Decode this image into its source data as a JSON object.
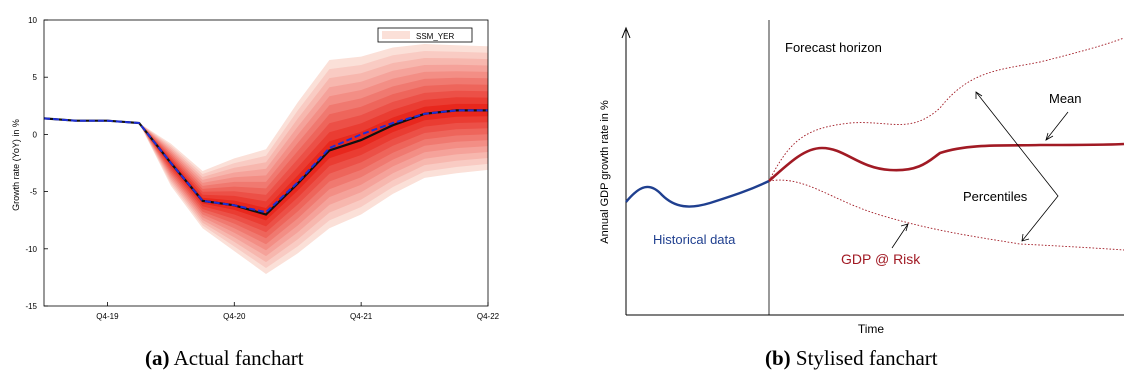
{
  "chart_data": [
    {
      "type": "area",
      "subtype": "fanchart",
      "ylabel": "Growth rate (YoY) in  %",
      "xlabel": "",
      "ylim": [
        -15,
        10
      ],
      "yticks": [
        10,
        5,
        0,
        -5,
        -10,
        -15
      ],
      "xticks": [
        "Q4-19",
        "Q4-20",
        "Q4-21",
        "Q4-22"
      ],
      "legend": {
        "entries": [
          "SSM_YER"
        ],
        "placement": "top-right"
      },
      "x": [
        "Q2-19",
        "Q3-19",
        "Q4-19",
        "Q1-20",
        "Q2-20",
        "Q3-20",
        "Q4-20",
        "Q1-21",
        "Q2-21",
        "Q3-21",
        "Q4-21",
        "Q1-22",
        "Q2-22",
        "Q3-22",
        "Q4-22"
      ],
      "series": [
        {
          "name": "SSM_YER",
          "values": [
            1.4,
            1.2,
            1.2,
            1.0,
            -2.5,
            -5.8,
            -6.2,
            -6.8,
            -4.2,
            -1.2,
            0.0,
            1.0,
            1.8,
            2.1,
            2.1
          ]
        }
      ],
      "fan": {
        "median": [
          1.4,
          1.2,
          1.2,
          1.0,
          -2.5,
          -5.8,
          -6.2,
          -7.0,
          -4.3,
          -1.4,
          -0.5,
          0.8,
          1.8,
          2.1,
          2.1
        ],
        "upper": [
          1.4,
          1.2,
          1.2,
          1.0,
          -0.8,
          -3.2,
          -2.1,
          -1.3,
          2.8,
          6.5,
          6.8,
          7.6,
          7.9,
          7.8,
          7.7
        ],
        "lower": [
          1.4,
          1.2,
          1.2,
          1.0,
          -4.5,
          -8.2,
          -10.2,
          -12.2,
          -10.4,
          -8.2,
          -7.0,
          -5.2,
          -3.8,
          -3.4,
          -3.1
        ],
        "bands": 10,
        "colors": {
          "light": "#fbe0d8",
          "dark": "#e8271d",
          "median": "#111111",
          "series": "#1f2fd6"
        }
      },
      "caption_label": "(a)",
      "caption_text": "Actual fanchart"
    },
    {
      "type": "line",
      "subtype": "stylised-fanchart",
      "xlabel": "Time",
      "ylabel": "Annual GDP growth rate in %",
      "annotations": {
        "forecast_horizon": "Forecast horizon",
        "mean": "Mean",
        "percentiles": "Percentiles",
        "historical": "Historical data",
        "gdp_at_risk": "GDP @ Risk"
      },
      "colors": {
        "historical": "#1f3f8f",
        "mean": "#a11a24",
        "percentile": "#a11a24",
        "axis": "#000000"
      },
      "caption_label": "(b)",
      "caption_text": "Stylised fanchart"
    }
  ]
}
